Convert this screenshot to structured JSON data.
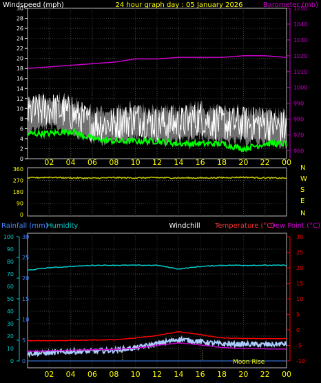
{
  "header": {
    "left_label": "Windspeed (mph)",
    "center_label": "24 hour graph day : 05 January 2026",
    "right_label": "Barometer (mb)"
  },
  "x_ticks": [
    "02",
    "04",
    "06",
    "08",
    "10",
    "12",
    "14",
    "16",
    "18",
    "20",
    "22",
    "00"
  ],
  "panel1": {
    "left_ticks": [
      "30",
      "28",
      "26",
      "24",
      "22",
      "20",
      "18",
      "16",
      "14",
      "12",
      "10",
      "8",
      "6",
      "4",
      "2",
      "0"
    ],
    "right_ticks": [
      "1050",
      "1040",
      "1030",
      "1020",
      "1010",
      "1000",
      "990",
      "980",
      "970",
      "960"
    ]
  },
  "panel2": {
    "left_ticks": [
      "360",
      "270",
      "180",
      "90",
      "0"
    ],
    "right_ticks": [
      "N",
      "W",
      "S",
      "E",
      "N"
    ]
  },
  "panel3": {
    "rain_label": "Rainfall (mm)",
    "humidity_label": "Humidity",
    "windchill_label": "Windchill",
    "temp_label": "Temperature (°C)",
    "dew_label": "Dew Point (°C)",
    "humidity_ticks": [
      "100",
      "90",
      "80",
      "70",
      "60",
      "50",
      "40",
      "30",
      "20",
      "10",
      "0"
    ],
    "rain_ticks": [
      "30",
      "25",
      "20",
      "15",
      "10",
      "5",
      "0"
    ],
    "temp_ticks": [
      "30",
      "25",
      "20",
      "15",
      "10",
      "5",
      "0",
      "-5",
      "-10"
    ],
    "moon_label": "Moon Rise"
  },
  "colors": {
    "windspeed": "#ffffff",
    "gust_fill": "#cccccc",
    "wind_avg": "#00ff00",
    "barometer": "#cc00cc",
    "direction": "#cccc00",
    "humidity": "#00cccc",
    "temperature": "#ff0000",
    "dewpoint": "#cc00cc",
    "windchill": "#aaccff",
    "header_yellow": "#ffff00",
    "grid": "#444444"
  },
  "chart_data": [
    {
      "type": "line",
      "title": "24 hour graph day : 05 January 2026",
      "ylabel": "Windspeed (mph)",
      "y2label": "Barometer (mb)",
      "x_hours": [
        0,
        2,
        4,
        6,
        8,
        10,
        12,
        14,
        16,
        18,
        20,
        22,
        24
      ],
      "ylim": [
        0,
        30
      ],
      "y2lim": [
        955,
        1050
      ],
      "series": [
        {
          "name": "Windspeed (mph)",
          "values": [
            9,
            10,
            9,
            7,
            7,
            8,
            7,
            7,
            8,
            7,
            7,
            7,
            6
          ]
        },
        {
          "name": "Windspeed (mph)",
          "values": [
            5,
            5,
            5.5,
            4,
            3.5,
            3.5,
            3.5,
            3,
            3,
            3,
            2,
            3,
            3
          ]
        },
        {
          "name": "Barometer (mb)",
          "values": [
            1012,
            1013,
            1014,
            1015,
            1016,
            1018,
            1018,
            1019,
            1019,
            1019,
            1020,
            1020,
            1019
          ]
        }
      ]
    },
    {
      "type": "line",
      "ylim": [
        0,
        360
      ],
      "x_hours": [
        0,
        2,
        4,
        6,
        8,
        10,
        12,
        14,
        16,
        18,
        20,
        22,
        24
      ],
      "series": [
        {
          "name": "",
          "values": [
            290,
            295,
            290,
            288,
            292,
            290,
            292,
            290,
            290,
            292,
            295,
            290,
            288
          ]
        }
      ]
    },
    {
      "type": "line",
      "title": "",
      "x_hours": [
        0,
        2,
        4,
        6,
        8,
        10,
        12,
        14,
        16,
        18,
        20,
        22,
        24
      ],
      "series": [
        {
          "name": "Humidity",
          "axis": "humidity",
          "values": [
            73,
            75,
            76,
            77,
            77,
            77,
            77,
            74,
            76,
            77,
            77,
            77,
            77
          ]
        },
        {
          "name": "Temperature (°C)",
          "axis": "temp",
          "values": [
            -3.5,
            -3.5,
            -3.4,
            -3.3,
            -3.2,
            -2.6,
            -1.8,
            -0.6,
            -1.5,
            -2.6,
            -2.8,
            -2.8,
            -2.8
          ]
        },
        {
          "name": "Dew Point (°C)",
          "axis": "temp",
          "values": [
            -6.9,
            -6.8,
            -6.6,
            -6.4,
            -6.3,
            -5.9,
            -5,
            -4.2,
            -4.8,
            -5.7,
            -6,
            -6.1,
            -6.2
          ]
        },
        {
          "name": "Windchill",
          "axis": "temp",
          "values": [
            -7.6,
            -7.4,
            -7,
            -6.9,
            -6.6,
            -5.8,
            -4.5,
            -3,
            -3.8,
            -4.6,
            -4.6,
            -4.8,
            -4.5
          ]
        }
      ],
      "rainfall_ylim": [
        0,
        30
      ],
      "humidity_ylim": [
        0,
        100
      ],
      "temp_ylim": [
        -10,
        30
      ]
    }
  ]
}
